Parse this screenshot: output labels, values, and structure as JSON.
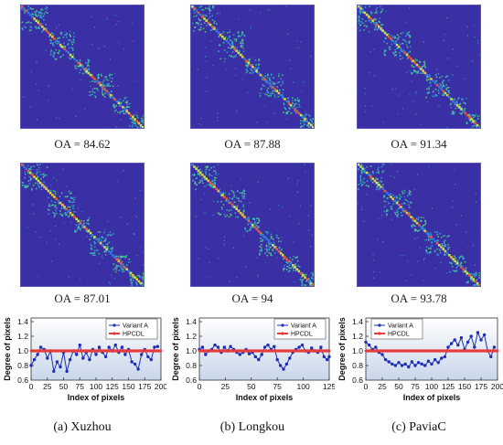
{
  "heatmaps": [
    {
      "oa": "OA = 84.62"
    },
    {
      "oa": "OA = 87.88"
    },
    {
      "oa": "OA = 91.34"
    },
    {
      "oa": "OA = 87.01"
    },
    {
      "oa": "OA = 94"
    },
    {
      "oa": "OA = 93.78"
    }
  ],
  "chart_data": [
    {
      "type": "line",
      "caption": "(a) Xuzhou",
      "xlabel": "Index of pixels",
      "ylabel": "Degree of pixels",
      "xlim": [
        0,
        200
      ],
      "ylim": [
        0.6,
        1.45
      ],
      "xticks": [
        0,
        25,
        50,
        75,
        100,
        125,
        150,
        175,
        200
      ],
      "yticks": [
        0.6,
        0.8,
        1.0,
        1.2,
        1.4
      ],
      "legend": "top-right",
      "series": [
        {
          "name": "Variant A",
          "color": "#1f2fb5",
          "x": [
            0,
            5,
            10,
            15,
            20,
            25,
            30,
            35,
            40,
            45,
            50,
            55,
            60,
            65,
            70,
            75,
            80,
            85,
            90,
            95,
            100,
            105,
            110,
            115,
            120,
            125,
            130,
            135,
            140,
            145,
            150,
            155,
            160,
            165,
            170,
            175,
            180,
            185,
            190,
            195
          ],
          "y": [
            0.8,
            0.88,
            0.95,
            1.05,
            1.02,
            0.9,
            1.0,
            0.72,
            0.85,
            0.78,
            0.98,
            0.72,
            0.88,
            1.0,
            0.95,
            1.08,
            0.9,
            0.98,
            0.88,
            1.02,
            0.95,
            1.05,
            0.98,
            0.92,
            1.05,
            1.0,
            1.08,
            0.98,
            1.05,
            0.95,
            1.02,
            0.85,
            0.82,
            0.75,
            0.95,
            1.02,
            0.92,
            0.88,
            1.05,
            1.06
          ]
        },
        {
          "name": "HPCDL",
          "color": "#e83a3a",
          "x": [
            0,
            200
          ],
          "y": [
            1.0,
            1.0
          ]
        }
      ]
    },
    {
      "type": "line",
      "caption": "(b) Longkou",
      "xlabel": "Index of pixels",
      "ylabel": "Degree of pixels",
      "xlim": [
        0,
        125
      ],
      "ylim": [
        0.6,
        1.45
      ],
      "xticks": [
        0,
        25,
        50,
        75,
        100,
        125
      ],
      "yticks": [
        0.6,
        0.8,
        1.0,
        1.2,
        1.4
      ],
      "legend": "top-right",
      "series": [
        {
          "name": "Variant A",
          "color": "#1f2fb5",
          "x": [
            0,
            3,
            6,
            9,
            12,
            15,
            18,
            21,
            24,
            27,
            30,
            33,
            36,
            39,
            42,
            45,
            48,
            51,
            54,
            57,
            60,
            63,
            66,
            69,
            72,
            75,
            78,
            81,
            84,
            87,
            90,
            93,
            96,
            99,
            102,
            105,
            108,
            111,
            114,
            117,
            120,
            123,
            125
          ],
          "y": [
            1.02,
            1.05,
            0.95,
            1.0,
            1.02,
            1.08,
            1.05,
            0.98,
            1.05,
            1.0,
            1.06,
            1.02,
            0.98,
            0.95,
            0.98,
            1.02,
            0.96,
            0.98,
            0.92,
            0.88,
            0.95,
            1.05,
            1.08,
            1.02,
            1.06,
            0.88,
            0.8,
            0.75,
            0.82,
            0.9,
            0.98,
            1.02,
            1.05,
            1.08,
            1.0,
            0.98,
            1.04,
            1.0,
            0.98,
            1.05,
            0.92,
            0.88,
            0.92
          ]
        },
        {
          "name": "HPCDL",
          "color": "#e83a3a",
          "x": [
            0,
            125
          ],
          "y": [
            1.0,
            1.0
          ]
        }
      ]
    },
    {
      "type": "line",
      "caption": "(c) PaviaC",
      "xlabel": "Index of pixels",
      "ylabel": "Degree of pixels",
      "xlim": [
        0,
        200
      ],
      "ylim": [
        0.6,
        1.45
      ],
      "xticks": [
        0,
        25,
        50,
        75,
        100,
        125,
        150,
        175,
        200
      ],
      "yticks": [
        0.6,
        0.8,
        1.0,
        1.2,
        1.4
      ],
      "legend": "top-left",
      "series": [
        {
          "name": "Variant A",
          "color": "#1f2fb5",
          "x": [
            0,
            5,
            10,
            15,
            20,
            25,
            30,
            35,
            40,
            45,
            50,
            55,
            60,
            65,
            70,
            75,
            80,
            85,
            90,
            95,
            100,
            105,
            110,
            115,
            120,
            125,
            130,
            135,
            140,
            145,
            150,
            155,
            160,
            165,
            170,
            175,
            180,
            185,
            190,
            195
          ],
          "y": [
            1.12,
            1.08,
            1.02,
            1.05,
            0.98,
            0.95,
            0.88,
            0.85,
            0.82,
            0.8,
            0.84,
            0.8,
            0.82,
            0.78,
            0.85,
            0.8,
            0.84,
            0.82,
            0.8,
            0.86,
            0.82,
            0.88,
            0.84,
            0.9,
            0.92,
            1.05,
            1.1,
            1.15,
            1.08,
            1.18,
            1.02,
            1.12,
            1.2,
            1.05,
            1.25,
            1.15,
            1.22,
            1.0,
            0.92,
            1.05
          ]
        },
        {
          "name": "HPCDL",
          "color": "#e83a3a",
          "x": [
            0,
            200
          ],
          "y": [
            1.0,
            1.0
          ]
        }
      ]
    }
  ]
}
